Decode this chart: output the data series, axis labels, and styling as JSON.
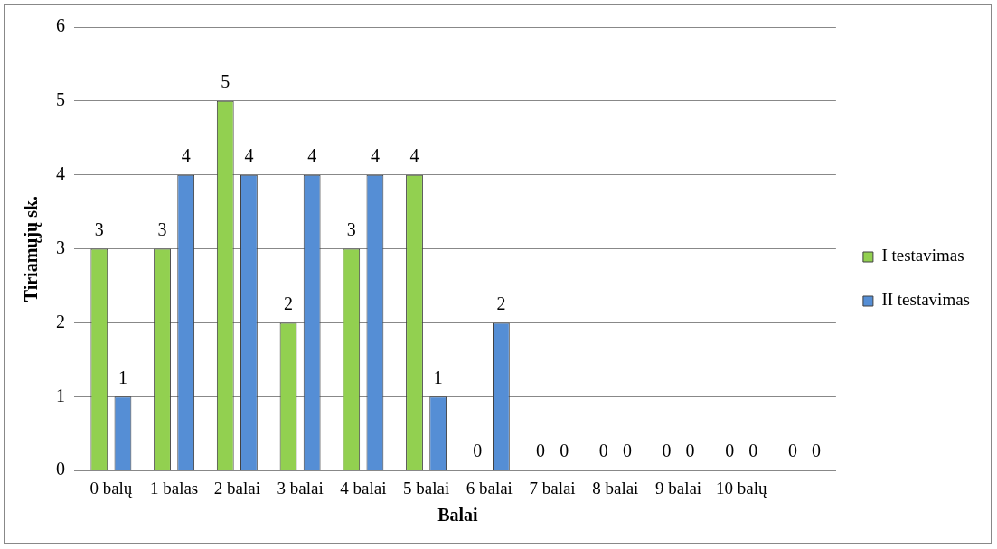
{
  "chart_data": {
    "type": "bar",
    "xlabel": "Balai",
    "ylabel": "Tiriamųjų sk.",
    "categories": [
      "0 balų",
      "1 balas",
      "2 balai",
      "3 balai",
      "4 balai",
      "5 balai",
      "6 balai",
      "7 balai",
      "8 balai",
      "9 balai",
      "10 balų",
      null
    ],
    "series": [
      {
        "name": "I testavimas",
        "color": "#92d050",
        "values": [
          3,
          3,
          5,
          2,
          3,
          4,
          0,
          0,
          0,
          0,
          0,
          0
        ]
      },
      {
        "name": "II testavimas",
        "color": "#558ed5",
        "values": [
          1,
          4,
          4,
          4,
          4,
          1,
          2,
          0,
          0,
          0,
          0,
          0
        ]
      }
    ],
    "ylim": [
      0,
      6
    ],
    "yticks": [
      0,
      1,
      2,
      3,
      4,
      5,
      6
    ],
    "grid": "y",
    "legend": "right",
    "data_labels": true
  }
}
